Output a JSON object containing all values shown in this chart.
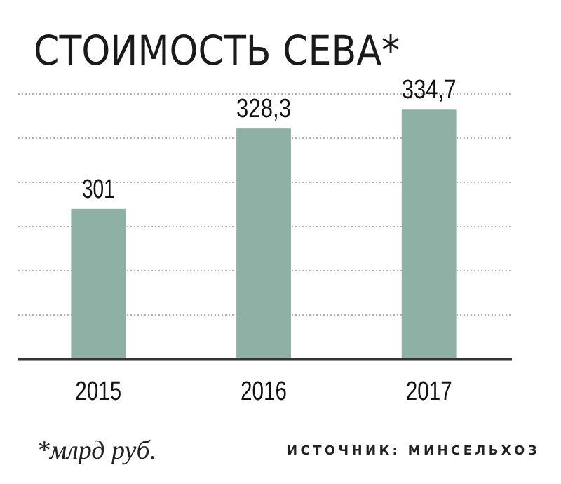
{
  "chart_data": {
    "type": "bar",
    "title": "СТОИМОСТЬ СЕВА*",
    "categories": [
      "2015",
      "2016",
      "2017"
    ],
    "values": [
      301,
      328.3,
      334.7
    ],
    "value_labels": [
      "301",
      "328,3",
      "334,7"
    ],
    "color": "#8fb0a5",
    "ylim": [
      250,
      340
    ],
    "yticks": [
      {
        "value": 265,
        "label": null
      },
      {
        "value": 280,
        "label": null
      },
      {
        "value": 295,
        "label": null
      },
      {
        "value": 310,
        "label": null
      },
      {
        "value": 325,
        "label": null
      },
      {
        "value": 340,
        "label": null
      }
    ],
    "tick_labels": "x",
    "grid": "y",
    "annotations": [
      "*млрд руб.",
      "ИСТОЧНИК: МИНСЕЛЬХОЗ"
    ]
  }
}
